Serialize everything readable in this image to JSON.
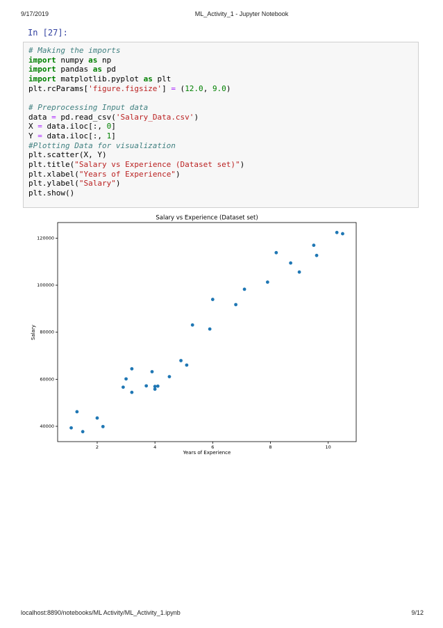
{
  "header": {
    "date": "9/17/2019",
    "title": "ML_Activity_1 - Jupyter Notebook"
  },
  "cell": {
    "prompt": "In [27]:",
    "code": [
      [
        {
          "text": "# Making the imports",
          "color": "#408080",
          "italic": true
        }
      ],
      [
        {
          "text": "import",
          "color": "#008000",
          "bold": true
        },
        {
          "text": " numpy "
        },
        {
          "text": "as",
          "color": "#008000",
          "bold": true
        },
        {
          "text": " np"
        }
      ],
      [
        {
          "text": "import",
          "color": "#008000",
          "bold": true
        },
        {
          "text": " pandas "
        },
        {
          "text": "as",
          "color": "#008000",
          "bold": true
        },
        {
          "text": " pd"
        }
      ],
      [
        {
          "text": "import",
          "color": "#008000",
          "bold": true
        },
        {
          "text": " matplotlib.pyplot "
        },
        {
          "text": "as",
          "color": "#008000",
          "bold": true
        },
        {
          "text": " plt"
        }
      ],
      [
        {
          "text": "plt.rcParams["
        },
        {
          "text": "'figure.figsize'",
          "color": "#BA2121"
        },
        {
          "text": "] "
        },
        {
          "text": "=",
          "color": "#AA22FF"
        },
        {
          "text": " ("
        },
        {
          "text": "12.0",
          "color": "#008000"
        },
        {
          "text": ", "
        },
        {
          "text": "9.0",
          "color": "#008000"
        },
        {
          "text": ")"
        }
      ],
      [],
      [
        {
          "text": "# Preprocessing Input data",
          "color": "#408080",
          "italic": true
        }
      ],
      [
        {
          "text": "data "
        },
        {
          "text": "=",
          "color": "#AA22FF"
        },
        {
          "text": " pd.read_csv("
        },
        {
          "text": "'Salary_Data.csv'",
          "color": "#BA2121"
        },
        {
          "text": ")"
        }
      ],
      [
        {
          "text": "X "
        },
        {
          "text": "=",
          "color": "#AA22FF"
        },
        {
          "text": " data.iloc[:, "
        },
        {
          "text": "0",
          "color": "#008000"
        },
        {
          "text": "]"
        }
      ],
      [
        {
          "text": "Y "
        },
        {
          "text": "=",
          "color": "#AA22FF"
        },
        {
          "text": " data.iloc[:, "
        },
        {
          "text": "1",
          "color": "#008000"
        },
        {
          "text": "]"
        }
      ],
      [
        {
          "text": "#Plotting Data for visualization",
          "color": "#408080",
          "italic": true
        }
      ],
      [
        {
          "text": "plt.scatter(X, Y)"
        }
      ],
      [
        {
          "text": "plt.title("
        },
        {
          "text": "\"Salary vs Experience (Dataset set)\"",
          "color": "#BA2121"
        },
        {
          "text": ")"
        }
      ],
      [
        {
          "text": "plt.xlabel("
        },
        {
          "text": "\"Years of Experience\"",
          "color": "#BA2121"
        },
        {
          "text": ")"
        }
      ],
      [
        {
          "text": "plt.ylabel("
        },
        {
          "text": "\"Salary\"",
          "color": "#BA2121"
        },
        {
          "text": ")"
        }
      ],
      [
        {
          "text": "plt.show()"
        }
      ]
    ]
  },
  "chart_data": {
    "type": "scatter",
    "title": "Salary vs Experience (Dataset set)",
    "x_label": "Years of Experience",
    "y_label": "Salary",
    "x": [
      1.1,
      1.3,
      1.5,
      2.0,
      2.2,
      2.9,
      3.0,
      3.2,
      3.2,
      3.7,
      3.9,
      4.0,
      4.0,
      4.1,
      4.5,
      4.9,
      5.1,
      5.3,
      5.9,
      6.0,
      6.8,
      7.1,
      7.9,
      8.2,
      8.7,
      9.0,
      9.5,
      9.6,
      10.3,
      10.5
    ],
    "values": [
      39343,
      46205,
      37731,
      43525,
      39891,
      56642,
      60150,
      54445,
      64445,
      57189,
      63218,
      55794,
      56957,
      57081,
      61111,
      67938,
      66029,
      83088,
      81363,
      93940,
      91738,
      98273,
      101302,
      113812,
      109431,
      105582,
      116969,
      112635,
      122391,
      121872
    ],
    "color": "#1f77b4",
    "xlim": [
      0.63,
      10.97
    ],
    "xticks": [
      2,
      4,
      6,
      8,
      10
    ],
    "ylim": [
      33498,
      126624
    ],
    "yticks": [
      40000,
      60000,
      80000,
      100000,
      120000
    ],
    "grid": false
  },
  "footer": {
    "url": "localhost:8890/notebooks/ML Activity/ML_Activity_1.ipynb",
    "page": "9/12"
  }
}
